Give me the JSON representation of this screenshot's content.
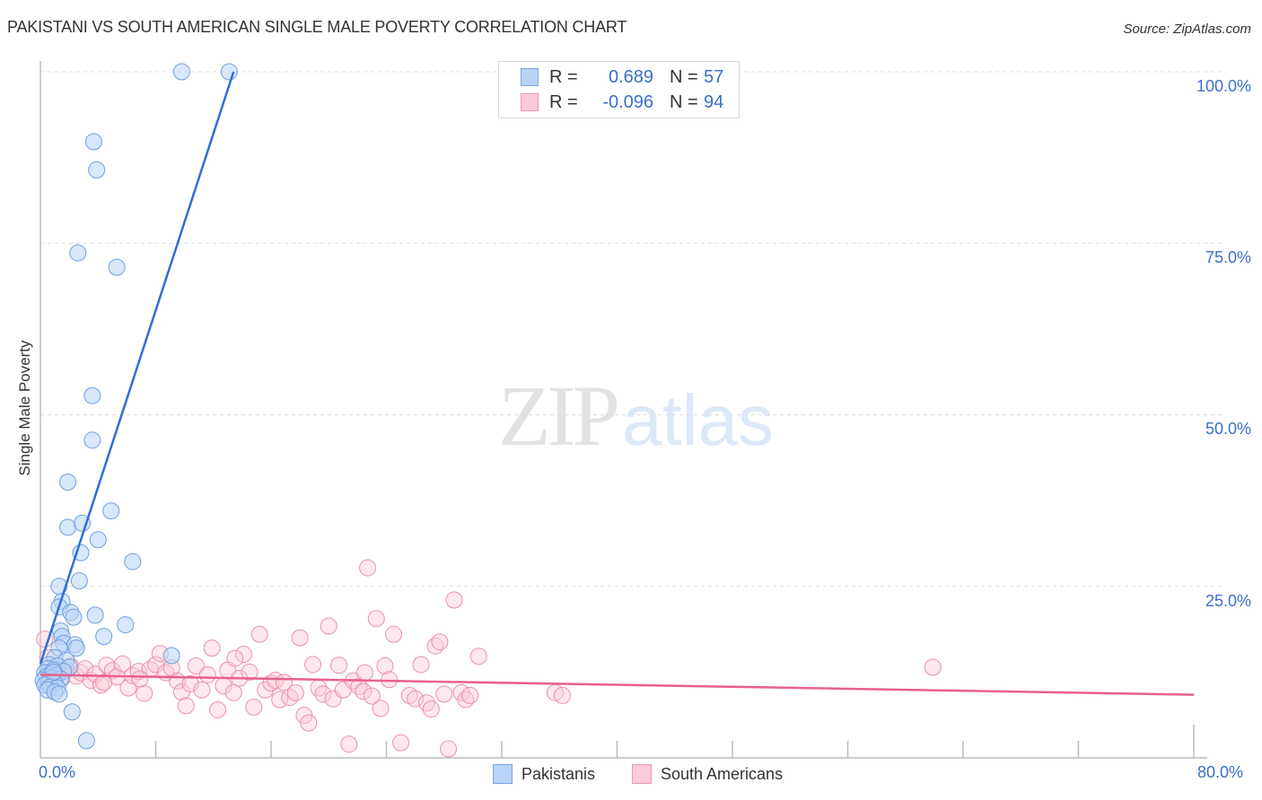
{
  "header": {
    "title": "PAKISTANI VS SOUTH AMERICAN SINGLE MALE POVERTY CORRELATION CHART",
    "source": "Source: ZipAtlas.com"
  },
  "legend": {
    "rows": [
      {
        "r_label": "R =",
        "r_value": "0.689",
        "n_label": "N =",
        "n_value": "57",
        "color": "#b8d3f5"
      },
      {
        "r_label": "R =",
        "r_value": "-0.096",
        "n_label": "N =",
        "n_value": "94",
        "color": "#fccad8"
      }
    ],
    "series": [
      {
        "label": "Pakistanis",
        "color": "#b8d3f5"
      },
      {
        "label": "South Americans",
        "color": "#fccad8"
      }
    ]
  },
  "axes": {
    "y_label": "Single Male Poverty",
    "y_ticks": [
      "100.0%",
      "75.0%",
      "50.0%",
      "25.0%"
    ],
    "x_ticks": [
      "0.0%",
      "80.0%"
    ]
  },
  "watermark": {
    "zip": "ZIP",
    "atlas": "atlas"
  },
  "chart_data": {
    "type": "scatter",
    "title": "PAKISTANI VS SOUTH AMERICAN SINGLE MALE POVERTY CORRELATION CHART",
    "xlabel": "",
    "ylabel": "Single Male Poverty",
    "xlim": [
      0,
      80
    ],
    "ylim": [
      0,
      100
    ],
    "x_tick_labels": [
      "0.0%",
      "80.0%"
    ],
    "y_tick_labels": [
      "25.0%",
      "50.0%",
      "75.0%",
      "100.0%"
    ],
    "grid": "horizontal dashed",
    "legend_position": "top-center and bottom",
    "series": [
      {
        "name": "Pakistanis",
        "color": "#6f9fe0",
        "R": 0.689,
        "N": 57,
        "trend": {
          "x": [
            0,
            13.4
          ],
          "y": [
            13.7,
            100
          ]
        },
        "points": [
          [
            9.8,
            100
          ],
          [
            13.1,
            100
          ],
          [
            3.7,
            89.8
          ],
          [
            3.9,
            85.7
          ],
          [
            2.6,
            73.6
          ],
          [
            5.3,
            71.5
          ],
          [
            3.6,
            52.8
          ],
          [
            3.6,
            46.3
          ],
          [
            1.9,
            40.2
          ],
          [
            4.9,
            36.0
          ],
          [
            1.9,
            33.6
          ],
          [
            2.9,
            34.2
          ],
          [
            4.0,
            31.8
          ],
          [
            2.8,
            29.9
          ],
          [
            6.4,
            28.6
          ],
          [
            2.7,
            25.8
          ],
          [
            1.3,
            25.0
          ],
          [
            1.5,
            22.8
          ],
          [
            1.3,
            22.0
          ],
          [
            2.1,
            21.2
          ],
          [
            2.3,
            20.5
          ],
          [
            3.8,
            20.8
          ],
          [
            5.9,
            19.4
          ],
          [
            1.4,
            18.5
          ],
          [
            1.5,
            17.7
          ],
          [
            4.4,
            17.7
          ],
          [
            1.6,
            16.7
          ],
          [
            2.4,
            16.5
          ],
          [
            1.3,
            16.0
          ],
          [
            2.5,
            16.0
          ],
          [
            9.1,
            14.9
          ],
          [
            1.0,
            14.6
          ],
          [
            1.8,
            14.2
          ],
          [
            0.6,
            13.6
          ],
          [
            1.2,
            13.4
          ],
          [
            2.0,
            13.2
          ],
          [
            0.5,
            13.0
          ],
          [
            0.9,
            12.8
          ],
          [
            1.6,
            12.6
          ],
          [
            0.3,
            12.4
          ],
          [
            0.7,
            12.2
          ],
          [
            1.1,
            12.0
          ],
          [
            0.4,
            11.8
          ],
          [
            0.8,
            11.6
          ],
          [
            1.4,
            11.5
          ],
          [
            0.2,
            11.3
          ],
          [
            0.6,
            11.1
          ],
          [
            1.0,
            10.9
          ],
          [
            0.3,
            10.6
          ],
          [
            0.7,
            10.4
          ],
          [
            1.2,
            10.2
          ],
          [
            0.5,
            9.9
          ],
          [
            1.0,
            9.6
          ],
          [
            1.3,
            9.3
          ],
          [
            2.2,
            6.7
          ],
          [
            3.2,
            2.5
          ],
          [
            0.9,
            12.5
          ]
        ]
      },
      {
        "name": "South Americans",
        "color": "#f09bb6",
        "R": -0.096,
        "N": 94,
        "trend": {
          "x": [
            0,
            80
          ],
          "y": [
            12.1,
            9.2
          ]
        },
        "points": [
          [
            0.3,
            17.3
          ],
          [
            0.5,
            14.6
          ],
          [
            0.7,
            13.2
          ],
          [
            1.0,
            12.6
          ],
          [
            1.2,
            12.1
          ],
          [
            1.5,
            11.6
          ],
          [
            1.8,
            12.8
          ],
          [
            2.1,
            13.4
          ],
          [
            2.5,
            11.9
          ],
          [
            2.8,
            12.4
          ],
          [
            3.1,
            13.0
          ],
          [
            3.5,
            11.3
          ],
          [
            3.8,
            12.2
          ],
          [
            4.2,
            10.6
          ],
          [
            4.6,
            13.5
          ],
          [
            5.0,
            12.7
          ],
          [
            5.3,
            11.8
          ],
          [
            5.7,
            13.7
          ],
          [
            6.1,
            10.2
          ],
          [
            6.4,
            12.0
          ],
          [
            6.8,
            12.6
          ],
          [
            7.2,
            9.4
          ],
          [
            7.6,
            12.9
          ],
          [
            8.0,
            13.6
          ],
          [
            8.3,
            15.2
          ],
          [
            8.7,
            12.4
          ],
          [
            9.1,
            13.1
          ],
          [
            9.5,
            11.2
          ],
          [
            9.8,
            9.6
          ],
          [
            10.1,
            7.6
          ],
          [
            10.4,
            10.8
          ],
          [
            10.8,
            13.4
          ],
          [
            11.2,
            9.9
          ],
          [
            11.6,
            12.1
          ],
          [
            11.9,
            16.0
          ],
          [
            12.3,
            7.0
          ],
          [
            12.7,
            10.5
          ],
          [
            13.0,
            12.8
          ],
          [
            13.4,
            9.5
          ],
          [
            13.8,
            11.6
          ],
          [
            14.1,
            15.1
          ],
          [
            14.5,
            12.5
          ],
          [
            14.8,
            7.4
          ],
          [
            15.2,
            18.0
          ],
          [
            15.6,
            9.9
          ],
          [
            16.0,
            10.9
          ],
          [
            16.3,
            11.3
          ],
          [
            16.6,
            8.5
          ],
          [
            16.9,
            11.0
          ],
          [
            17.3,
            8.8
          ],
          [
            17.7,
            9.5
          ],
          [
            18.0,
            17.5
          ],
          [
            18.3,
            6.2
          ],
          [
            18.6,
            5.1
          ],
          [
            18.9,
            13.6
          ],
          [
            19.3,
            10.2
          ],
          [
            19.6,
            9.3
          ],
          [
            20.0,
            19.2
          ],
          [
            20.3,
            8.6
          ],
          [
            20.7,
            13.5
          ],
          [
            21.0,
            9.9
          ],
          [
            21.4,
            2.0
          ],
          [
            21.7,
            11.2
          ],
          [
            22.1,
            10.4
          ],
          [
            22.4,
            9.7
          ],
          [
            22.7,
            27.7
          ],
          [
            23.0,
            9.0
          ],
          [
            23.3,
            20.3
          ],
          [
            23.6,
            7.2
          ],
          [
            23.9,
            13.4
          ],
          [
            24.2,
            11.4
          ],
          [
            24.5,
            18.0
          ],
          [
            25.0,
            2.2
          ],
          [
            25.6,
            9.1
          ],
          [
            26.0,
            8.6
          ],
          [
            26.4,
            13.6
          ],
          [
            26.8,
            8.0
          ],
          [
            27.1,
            7.1
          ],
          [
            27.4,
            16.3
          ],
          [
            27.7,
            16.9
          ],
          [
            28.0,
            9.3
          ],
          [
            28.3,
            1.3
          ],
          [
            28.7,
            23.0
          ],
          [
            29.2,
            9.5
          ],
          [
            29.5,
            8.5
          ],
          [
            29.8,
            9.1
          ],
          [
            30.4,
            14.8
          ],
          [
            35.7,
            9.5
          ],
          [
            36.2,
            9.1
          ],
          [
            61.9,
            13.2
          ],
          [
            4.4,
            11.0
          ],
          [
            6.9,
            11.5
          ],
          [
            13.5,
            14.5
          ],
          [
            22.5,
            12.4
          ]
        ]
      }
    ]
  }
}
